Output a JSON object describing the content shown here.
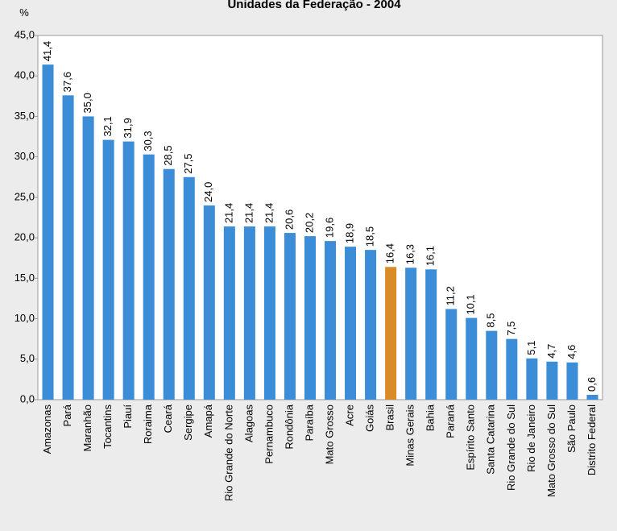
{
  "chart_data": {
    "type": "bar",
    "title": "Unidades da Federação - 2004",
    "y_axis_label": "%",
    "categories": [
      "Amazonas",
      "Pará",
      "Maranhão",
      "Tocantins",
      "Piauí",
      "Roraima",
      "Ceará",
      "Sergipe",
      "Amapá",
      "Rio Grande do Norte",
      "Alagoas",
      "Pernambuco",
      "Rondônia",
      "Paraíba",
      "Mato Grosso",
      "Acre",
      "Goiás",
      "Brasil",
      "Minas Gerais",
      "Bahia",
      "Paraná",
      "Espírito Santo",
      "Santa Catarina",
      "Rio Grande do Sul",
      "Rio de Janeiro",
      "Mato Grosso do Sul",
      "São Paulo",
      "Distrito Federal"
    ],
    "values": [
      41.4,
      37.6,
      35.0,
      32.1,
      31.9,
      30.3,
      28.5,
      27.5,
      24.0,
      21.4,
      21.4,
      21.4,
      20.6,
      20.2,
      19.6,
      18.9,
      18.5,
      16.4,
      16.3,
      16.1,
      11.2,
      10.1,
      8.5,
      7.5,
      5.1,
      4.7,
      4.6,
      0.6
    ],
    "value_labels": [
      "41,4",
      "37,6",
      "35,0",
      "32,1",
      "31,9",
      "30,3",
      "28,5",
      "27,5",
      "24,0",
      "21,4",
      "21,4",
      "21,4",
      "20,6",
      "20,2",
      "19,6",
      "18,9",
      "18,5",
      "16,4",
      "16,3",
      "16,1",
      "11,2",
      "10,1",
      "8,5",
      "7,5",
      "5,1",
      "4,7",
      "4,6",
      "0,6"
    ],
    "color": "#3a8dd6",
    "highlight": {
      "category": "Brasil",
      "color": "#d98b27"
    },
    "ylim": [
      0,
      45
    ],
    "yticks": [
      {
        "value": 0,
        "label": "0,0"
      },
      {
        "value": 5,
        "label": "5,0"
      },
      {
        "value": 10,
        "label": "10,0"
      },
      {
        "value": 15,
        "label": "15,0"
      },
      {
        "value": 20,
        "label": "20,0"
      },
      {
        "value": 25,
        "label": "25,0"
      },
      {
        "value": 30,
        "label": "30,0"
      },
      {
        "value": 35,
        "label": "35,0"
      },
      {
        "value": 40,
        "label": "40,0"
      },
      {
        "value": 45,
        "label": "45,0"
      }
    ]
  }
}
